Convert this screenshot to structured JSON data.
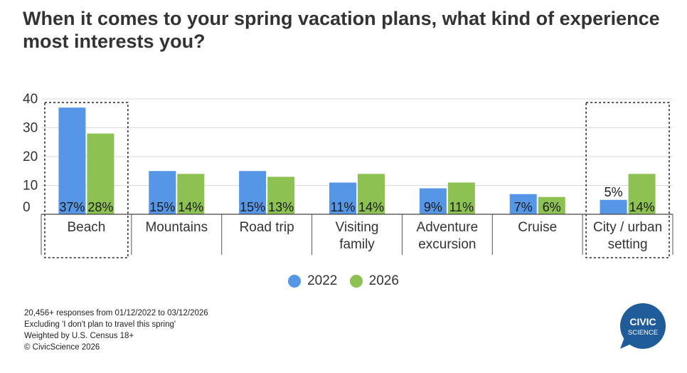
{
  "title": {
    "line1": "When it comes to your spring vacation plans, what kind of experience",
    "line2": "most interests you?"
  },
  "chart_data": {
    "type": "bar",
    "categories": [
      [
        "Beach"
      ],
      [
        "Mountains"
      ],
      [
        "Road trip"
      ],
      [
        "Visiting",
        "family"
      ],
      [
        "Adventure",
        "excursion"
      ],
      [
        "Cruise"
      ],
      [
        "City / urban",
        "setting"
      ]
    ],
    "series": [
      {
        "name": "2022",
        "color": "#5596e6",
        "values": [
          37,
          15,
          15,
          11,
          9,
          7,
          5
        ],
        "labels": [
          "37%",
          "15%",
          "15%",
          "11%",
          "9%",
          "7%",
          "5%"
        ]
      },
      {
        "name": "2026",
        "color": "#8dc152",
        "values": [
          28,
          14,
          13,
          14,
          11,
          6,
          14
        ],
        "labels": [
          "28%",
          "14%",
          "13%",
          "14%",
          "11%",
          "6%",
          "14%"
        ]
      }
    ],
    "yticks": [
      0,
      10,
      20,
      30,
      40
    ],
    "ylim": [
      0,
      40
    ],
    "grid": true,
    "highlighted_categories": [
      0,
      6
    ],
    "legend_position": "bottom-center"
  },
  "footer": {
    "line1": "20,456+ responses from 01/12/2022 to 03/12/2026",
    "line2": "Excluding 'I don't plan to travel this spring'",
    "line3": "Weighted by U.S. Census 18+",
    "line4": "© CivicScience 2026"
  },
  "logo": {
    "line1": "CIVIC",
    "line2": "SCIENCE",
    "color": "#1f5c99"
  }
}
